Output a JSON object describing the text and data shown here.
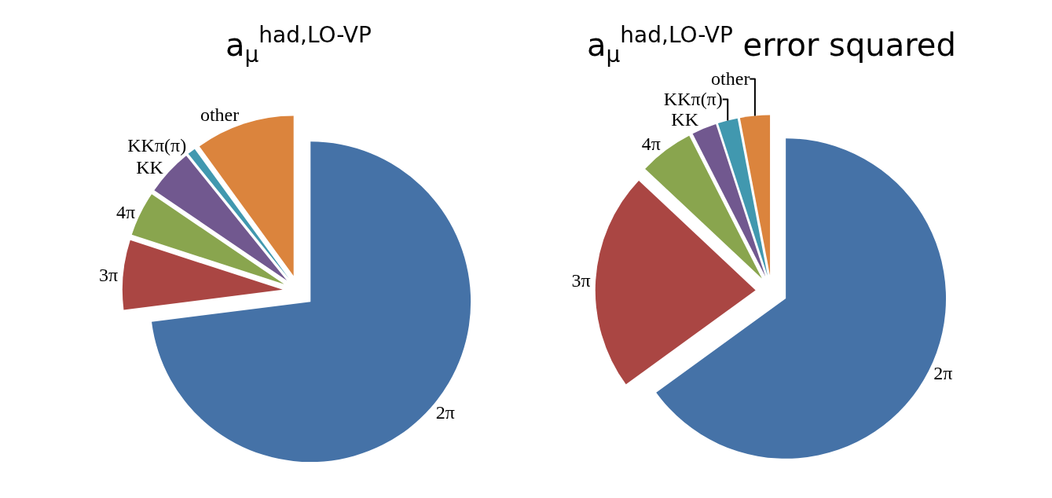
{
  "chart_data": [
    {
      "type": "pie",
      "title": "a$_{μ}$$^{had,LO-VP}$",
      "categories": [
        "2π",
        "3π",
        "4π",
        "KK",
        "KKπ(π)",
        "other"
      ],
      "values": [
        73,
        7,
        4.5,
        4.7,
        0.8,
        10
      ],
      "colors": [
        "#4572a7",
        "#aa4643",
        "#89a54e",
        "#71588f",
        "#4198af",
        "#db843d"
      ],
      "legend": false
    },
    {
      "type": "pie",
      "title": "a$_{μ}$$^{had,LO-VP}$ error squared",
      "categories": [
        "2π",
        "3π",
        "4π",
        "KK",
        "KKπ(π)",
        "other"
      ],
      "values": [
        65,
        22,
        5.5,
        2.5,
        2,
        3
      ],
      "colors": [
        "#4572a7",
        "#aa4643",
        "#89a54e",
        "#71588f",
        "#4198af",
        "#db843d"
      ],
      "legend": false
    }
  ]
}
